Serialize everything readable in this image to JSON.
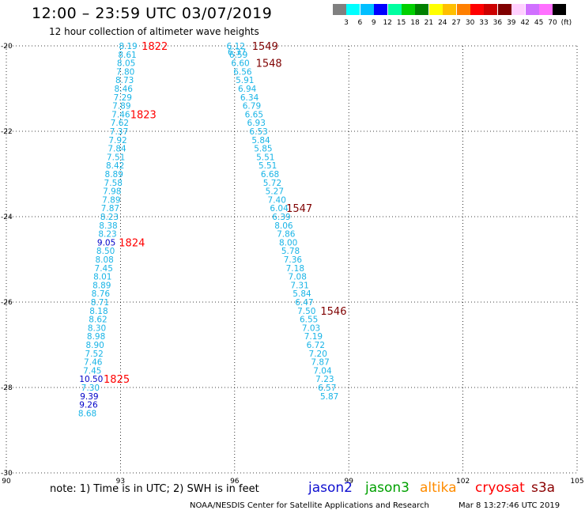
{
  "title": "12:00 – 23:59 UTC 03/07/2019",
  "subtitle": "12 hour collection of altimeter wave heights",
  "legend": {
    "colors": [
      "#808080",
      "#00ffff",
      "#00bfff",
      "#0000ff",
      "#00ffa0",
      "#00d000",
      "#008000",
      "#ffff00",
      "#ffbf00",
      "#ff7f00",
      "#ff0000",
      "#cc0000",
      "#7f0000",
      "#ffd0ff",
      "#d070ff",
      "#ff70ff",
      "#000000"
    ],
    "labels": [
      "3",
      "6",
      "9",
      "12",
      "15",
      "18",
      "21",
      "24",
      "27",
      "30",
      "33",
      "36",
      "39",
      "42",
      "45",
      "70",
      "(ft)"
    ]
  },
  "note": "note:  1) Time is in UTC;  2) SWH is in feet",
  "satellites": [
    {
      "name": "jason2",
      "color": "#1010d0"
    },
    {
      "name": "jason3",
      "color": "#00a000"
    },
    {
      "name": "altika",
      "color": "#ff8c00"
    },
    {
      "name": "cryosat",
      "color": "#ff0000"
    },
    {
      "name": "s3a",
      "color": "#8b0000"
    }
  ],
  "credit": "NOAA/NESDIS Center for Satellite Applications and Research",
  "timestamp": "Mar  8 13:27:46 UTC 2019",
  "chart_data": {
    "type": "scatter",
    "x_ticks": [
      "90",
      "93",
      "96",
      "99",
      "102",
      "105"
    ],
    "y_ticks": [
      "-20",
      "-22",
      "-24",
      "-26",
      "-28",
      "-30"
    ],
    "xlim": [
      90,
      105
    ],
    "ylim": [
      -30,
      -20
    ],
    "track_colors": {
      "cyan": "#19b4e6",
      "blue": "#0000c8",
      "red": "#ff0000",
      "maroon": "#7f0000"
    },
    "tracks": [
      {
        "points": [
          {
            "x": 93.2,
            "y": -20.0,
            "v": "8.19",
            "c": "cyan"
          },
          {
            "x": 93.18,
            "y": -20.2,
            "v": "8.61",
            "c": "cyan"
          },
          {
            "x": 93.15,
            "y": -20.4,
            "v": "8.05",
            "c": "cyan"
          },
          {
            "x": 93.13,
            "y": -20.6,
            "v": "7.80",
            "c": "cyan"
          },
          {
            "x": 93.11,
            "y": -20.8,
            "v": "8.73",
            "c": "cyan"
          },
          {
            "x": 93.08,
            "y": -21.0,
            "v": "8.46",
            "c": "cyan"
          },
          {
            "x": 93.06,
            "y": -21.2,
            "v": "7.29",
            "c": "cyan"
          },
          {
            "x": 93.03,
            "y": -21.4,
            "v": "7.89",
            "c": "cyan"
          },
          {
            "x": 93.01,
            "y": -21.6,
            "v": "7.46",
            "c": "cyan"
          },
          {
            "x": 92.98,
            "y": -21.8,
            "v": "7.62",
            "c": "cyan"
          },
          {
            "x": 92.96,
            "y": -22.0,
            "v": "7.37",
            "c": "cyan"
          },
          {
            "x": 92.93,
            "y": -22.2,
            "v": "7.92",
            "c": "cyan"
          },
          {
            "x": 92.91,
            "y": -22.4,
            "v": "7.84",
            "c": "cyan"
          },
          {
            "x": 92.88,
            "y": -22.6,
            "v": "7.51",
            "c": "cyan"
          },
          {
            "x": 92.86,
            "y": -22.8,
            "v": "8.42",
            "c": "cyan"
          },
          {
            "x": 92.83,
            "y": -23.0,
            "v": "8.89",
            "c": "cyan"
          },
          {
            "x": 92.81,
            "y": -23.2,
            "v": "7.58",
            "c": "cyan"
          },
          {
            "x": 92.78,
            "y": -23.4,
            "v": "7.98",
            "c": "cyan"
          },
          {
            "x": 92.76,
            "y": -23.6,
            "v": "7.89",
            "c": "cyan"
          },
          {
            "x": 92.73,
            "y": -23.8,
            "v": "7.87",
            "c": "cyan"
          },
          {
            "x": 92.71,
            "y": -24.0,
            "v": "8.23",
            "c": "cyan"
          },
          {
            "x": 92.68,
            "y": -24.2,
            "v": "8.38",
            "c": "cyan"
          },
          {
            "x": 92.66,
            "y": -24.4,
            "v": "8.23",
            "c": "cyan"
          },
          {
            "x": 92.63,
            "y": -24.6,
            "v": "9.05",
            "c": "blue"
          },
          {
            "x": 92.61,
            "y": -24.8,
            "v": "8.50",
            "c": "cyan"
          },
          {
            "x": 92.58,
            "y": -25.0,
            "v": "8.08",
            "c": "cyan"
          },
          {
            "x": 92.56,
            "y": -25.2,
            "v": "7.45",
            "c": "cyan"
          },
          {
            "x": 92.53,
            "y": -25.4,
            "v": "8.01",
            "c": "cyan"
          },
          {
            "x": 92.51,
            "y": -25.6,
            "v": "8.89",
            "c": "cyan"
          },
          {
            "x": 92.48,
            "y": -25.8,
            "v": "8.76",
            "c": "cyan"
          },
          {
            "x": 92.46,
            "y": -26.0,
            "v": "8.71",
            "c": "cyan"
          },
          {
            "x": 92.43,
            "y": -26.2,
            "v": "8.18",
            "c": "cyan"
          },
          {
            "x": 92.41,
            "y": -26.4,
            "v": "8.62",
            "c": "cyan"
          },
          {
            "x": 92.38,
            "y": -26.6,
            "v": "8.30",
            "c": "cyan"
          },
          {
            "x": 92.36,
            "y": -26.8,
            "v": "8.98",
            "c": "cyan"
          },
          {
            "x": 92.33,
            "y": -27.0,
            "v": "8.90",
            "c": "cyan"
          },
          {
            "x": 92.31,
            "y": -27.2,
            "v": "7.52",
            "c": "cyan"
          },
          {
            "x": 92.28,
            "y": -27.4,
            "v": "7.46",
            "c": "cyan"
          },
          {
            "x": 92.26,
            "y": -27.6,
            "v": "7.45",
            "c": "cyan"
          },
          {
            "x": 92.23,
            "y": -27.8,
            "v": "10.50",
            "c": "blue"
          },
          {
            "x": 92.21,
            "y": -28.0,
            "v": "7.30",
            "c": "cyan"
          },
          {
            "x": 92.18,
            "y": -28.2,
            "v": "9.39",
            "c": "blue"
          },
          {
            "x": 92.16,
            "y": -28.4,
            "v": "9.26",
            "c": "blue"
          },
          {
            "x": 92.13,
            "y": -28.6,
            "v": "8.68",
            "c": "cyan"
          }
        ],
        "labels": [
          {
            "x": 93.9,
            "y": -20.0,
            "t": "1822",
            "c": "red"
          },
          {
            "x": 93.6,
            "y": -21.6,
            "t": "1823",
            "c": "red"
          },
          {
            "x": 93.3,
            "y": -24.6,
            "t": "1824",
            "c": "red"
          },
          {
            "x": 92.9,
            "y": -27.8,
            "t": "1825",
            "c": "red"
          }
        ]
      },
      {
        "points": [
          {
            "x": 96.03,
            "y": -20.0,
            "v": "6.12",
            "c": "cyan"
          },
          {
            "x": 96.06,
            "y": -20.14,
            "v": "6.37",
            "c": "cyan"
          },
          {
            "x": 96.1,
            "y": -20.2,
            "v": "6.59",
            "c": "cyan"
          },
          {
            "x": 96.15,
            "y": -20.4,
            "v": "6.60",
            "c": "cyan"
          },
          {
            "x": 96.21,
            "y": -20.6,
            "v": "6.56",
            "c": "cyan"
          },
          {
            "x": 96.27,
            "y": -20.8,
            "v": "5.91",
            "c": "cyan"
          },
          {
            "x": 96.33,
            "y": -21.0,
            "v": "6.94",
            "c": "cyan"
          },
          {
            "x": 96.39,
            "y": -21.2,
            "v": "6.34",
            "c": "cyan"
          },
          {
            "x": 96.45,
            "y": -21.4,
            "v": "6.79",
            "c": "cyan"
          },
          {
            "x": 96.51,
            "y": -21.6,
            "v": "6.65",
            "c": "cyan"
          },
          {
            "x": 96.57,
            "y": -21.8,
            "v": "6.93",
            "c": "cyan"
          },
          {
            "x": 96.63,
            "y": -22.0,
            "v": "6.53",
            "c": "cyan"
          },
          {
            "x": 96.69,
            "y": -22.2,
            "v": "5.84",
            "c": "cyan"
          },
          {
            "x": 96.75,
            "y": -22.4,
            "v": "5.85",
            "c": "cyan"
          },
          {
            "x": 96.81,
            "y": -22.6,
            "v": "5.51",
            "c": "cyan"
          },
          {
            "x": 96.87,
            "y": -22.8,
            "v": "5.51",
            "c": "cyan"
          },
          {
            "x": 96.93,
            "y": -23.0,
            "v": "6.68",
            "c": "cyan"
          },
          {
            "x": 96.99,
            "y": -23.2,
            "v": "5.72",
            "c": "cyan"
          },
          {
            "x": 97.05,
            "y": -23.4,
            "v": "5.27",
            "c": "cyan"
          },
          {
            "x": 97.11,
            "y": -23.6,
            "v": "7.40",
            "c": "cyan"
          },
          {
            "x": 97.17,
            "y": -23.8,
            "v": "6.04",
            "c": "cyan"
          },
          {
            "x": 97.23,
            "y": -24.0,
            "v": "6.39",
            "c": "cyan"
          },
          {
            "x": 97.29,
            "y": -24.2,
            "v": "8.06",
            "c": "cyan"
          },
          {
            "x": 97.35,
            "y": -24.4,
            "v": "7.86",
            "c": "cyan"
          },
          {
            "x": 97.41,
            "y": -24.6,
            "v": "8.00",
            "c": "cyan"
          },
          {
            "x": 97.47,
            "y": -24.8,
            "v": "5.78",
            "c": "cyan"
          },
          {
            "x": 97.53,
            "y": -25.0,
            "v": "7.36",
            "c": "cyan"
          },
          {
            "x": 97.59,
            "y": -25.2,
            "v": "7.18",
            "c": "cyan"
          },
          {
            "x": 97.65,
            "y": -25.4,
            "v": "7.08",
            "c": "cyan"
          },
          {
            "x": 97.71,
            "y": -25.6,
            "v": "7.31",
            "c": "cyan"
          },
          {
            "x": 97.77,
            "y": -25.8,
            "v": "5.84",
            "c": "cyan"
          },
          {
            "x": 97.83,
            "y": -26.0,
            "v": "6.47",
            "c": "cyan"
          },
          {
            "x": 97.89,
            "y": -26.2,
            "v": "7.50",
            "c": "cyan"
          },
          {
            "x": 97.95,
            "y": -26.4,
            "v": "6.55",
            "c": "cyan"
          },
          {
            "x": 98.01,
            "y": -26.6,
            "v": "7.03",
            "c": "cyan"
          },
          {
            "x": 98.07,
            "y": -26.8,
            "v": "7.19",
            "c": "cyan"
          },
          {
            "x": 98.13,
            "y": -27.0,
            "v": "6.72",
            "c": "cyan"
          },
          {
            "x": 98.19,
            "y": -27.2,
            "v": "7.20",
            "c": "cyan"
          },
          {
            "x": 98.25,
            "y": -27.4,
            "v": "7.87",
            "c": "cyan"
          },
          {
            "x": 98.31,
            "y": -27.6,
            "v": "7.04",
            "c": "cyan"
          },
          {
            "x": 98.37,
            "y": -27.8,
            "v": "7.23",
            "c": "cyan"
          },
          {
            "x": 98.43,
            "y": -28.0,
            "v": "6.57",
            "c": "cyan"
          },
          {
            "x": 98.49,
            "y": -28.2,
            "v": "5.87",
            "c": "cyan"
          }
        ],
        "labels": [
          {
            "x": 96.8,
            "y": -20.0,
            "t": "1549",
            "c": "maroon"
          },
          {
            "x": 96.9,
            "y": -20.4,
            "t": "1548",
            "c": "maroon"
          },
          {
            "x": 97.7,
            "y": -23.8,
            "t": "1547",
            "c": "maroon"
          },
          {
            "x": 98.6,
            "y": -26.2,
            "t": "1546",
            "c": "maroon"
          }
        ]
      }
    ]
  }
}
